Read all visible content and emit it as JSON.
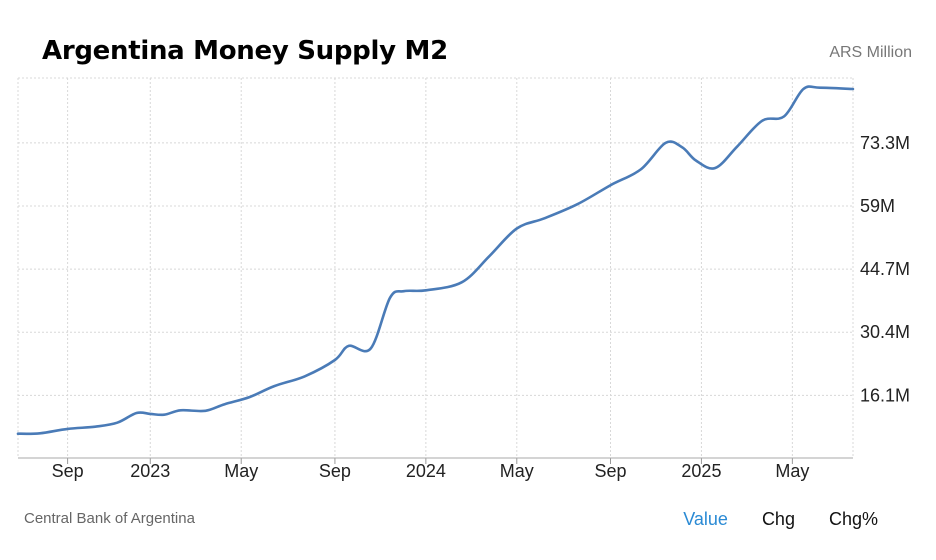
{
  "header": {
    "title": "Argentina Money Supply M2",
    "unit": "ARS Million"
  },
  "footer": {
    "source": "Central Bank of Argentina"
  },
  "tabs": [
    {
      "label": "Value",
      "active": true
    },
    {
      "label": "Chg",
      "active": false
    },
    {
      "label": "Chg%",
      "active": false
    }
  ],
  "colors": {
    "line": "#4a7bb7",
    "grid": "#d8d8d8",
    "active_tab": "#2a8ad4"
  },
  "chart_data": {
    "type": "line",
    "title": "Argentina Money Supply M2",
    "ylabel": "ARS Million",
    "ylim": [
      1900000,
      88000000
    ],
    "xlim": [
      2022.52,
      2025.55
    ],
    "y_ticks": [
      {
        "value": 16100000,
        "label": "16.1M"
      },
      {
        "value": 30400000,
        "label": "30.4M"
      },
      {
        "value": 44700000,
        "label": "44.7M"
      },
      {
        "value": 59000000,
        "label": "59M"
      },
      {
        "value": 73300000,
        "label": "73.3M"
      }
    ],
    "x_ticks": [
      {
        "value": 2022.7,
        "label": "Sep"
      },
      {
        "value": 2023.0,
        "label": "2023"
      },
      {
        "value": 2023.33,
        "label": "May"
      },
      {
        "value": 2023.67,
        "label": "Sep"
      },
      {
        "value": 2024.0,
        "label": "2024"
      },
      {
        "value": 2024.33,
        "label": "May"
      },
      {
        "value": 2024.67,
        "label": "Sep"
      },
      {
        "value": 2025.0,
        "label": "2025"
      },
      {
        "value": 2025.33,
        "label": "May"
      }
    ],
    "series": [
      {
        "name": "Money Supply M2",
        "x": [
          2022.52,
          2022.6,
          2022.7,
          2022.8,
          2022.88,
          2022.95,
          2023.0,
          2023.05,
          2023.11,
          2023.2,
          2023.27,
          2023.36,
          2023.45,
          2023.56,
          2023.67,
          2023.72,
          2023.8,
          2023.87,
          2023.92,
          2024.0,
          2024.13,
          2024.23,
          2024.33,
          2024.43,
          2024.55,
          2024.67,
          2024.78,
          2024.87,
          2024.93,
          2024.98,
          2025.05,
          2025.13,
          2025.22,
          2025.3,
          2025.37,
          2025.43,
          2025.55
        ],
        "values": [
          7400000,
          7500000,
          8500000,
          9000000,
          9900000,
          12100000,
          11900000,
          11700000,
          12700000,
          12600000,
          14100000,
          15700000,
          18200000,
          20400000,
          24100000,
          27300000,
          26700000,
          38200000,
          39700000,
          39900000,
          41700000,
          47600000,
          53900000,
          56200000,
          59400000,
          63700000,
          67300000,
          73300000,
          72300000,
          69300000,
          67600000,
          72500000,
          78300000,
          79300000,
          85500000,
          85800000,
          85500000
        ]
      }
    ]
  }
}
